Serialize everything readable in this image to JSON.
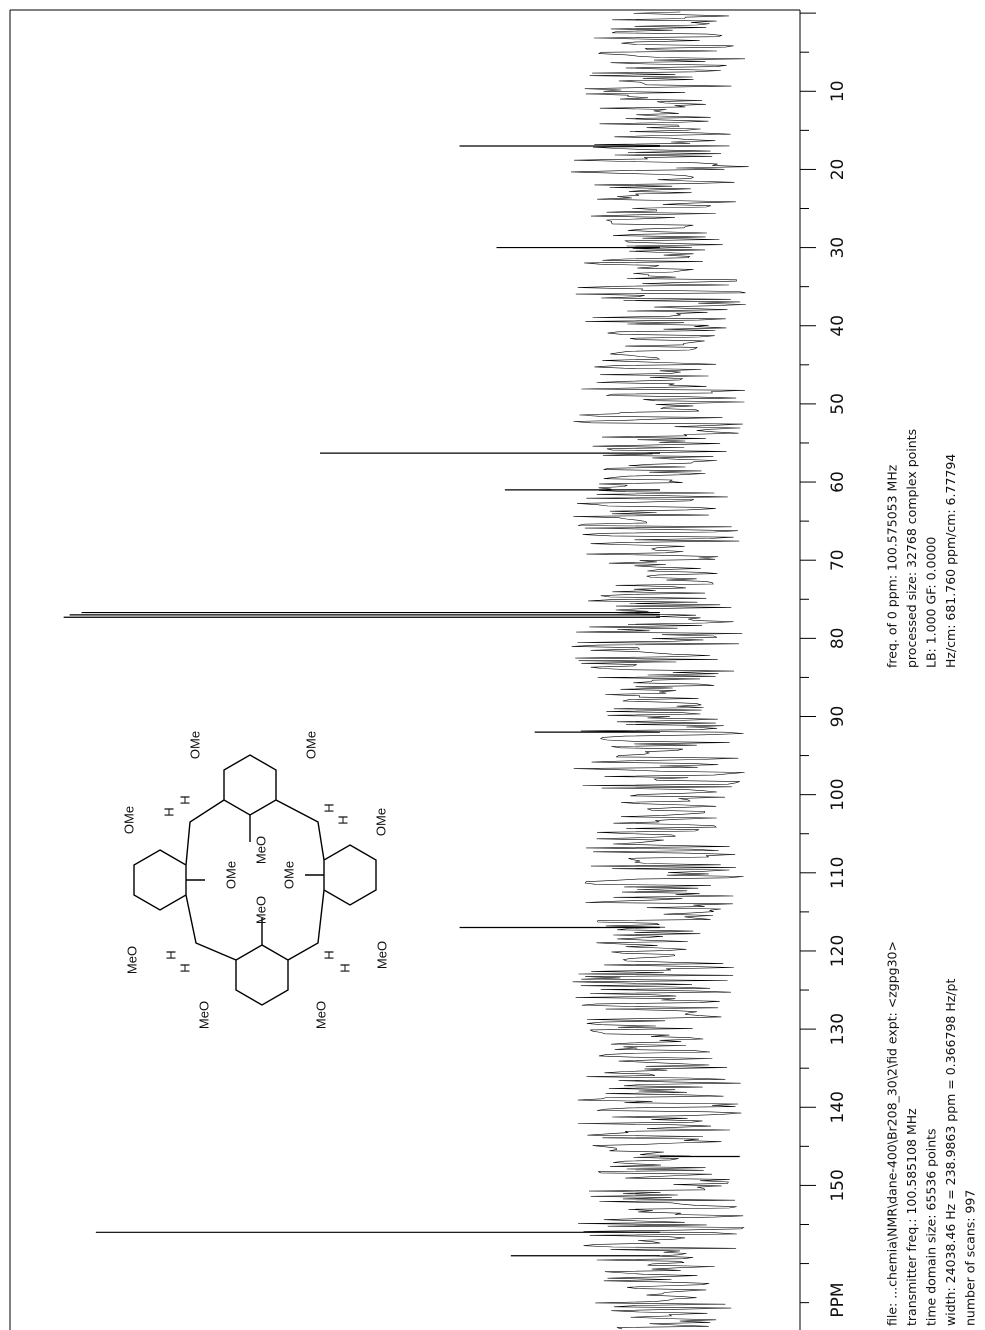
{
  "chart_data": {
    "type": "spectrum",
    "x_label": "PPM",
    "x": [
      159.0,
      156.0,
      146.3,
      117.0,
      92.0,
      77.3,
      77.0,
      76.7,
      61.0,
      56.3,
      30.0,
      17.0
    ],
    "values": [
      25,
      94.6,
      -13.4,
      33.6,
      21,
      100,
      99,
      97,
      26,
      57,
      27.4,
      33.6
    ],
    "xlim": [
      -0.4,
      168.5
    ],
    "ylim": [
      -23.5,
      109
    ],
    "xticks": [
      10,
      20,
      30,
      40,
      50,
      60,
      70,
      80,
      90,
      100,
      110,
      120,
      130,
      140,
      150
    ],
    "minor_xticks": [
      0,
      5,
      15,
      25,
      35,
      45,
      55,
      65,
      75,
      85,
      95,
      105,
      115,
      125,
      135,
      145,
      155,
      160,
      165
    ],
    "color": "#000000",
    "parameters_left": [
      "file: ...chemia\\NMR\\dane-400\\Br208_30\\2\\fid   expt: <zgpg30>",
      "transmitter freq.: 100.585108 MHz",
      "time domain size: 65536 points",
      "width: 24038.46 Hz = 238.9863 ppm = 0.366798 Hz/pt",
      "number of scans: 997"
    ],
    "parameters_right": [
      "freq. of 0 ppm: 100.575053 MHz",
      "processed size: 32768 complex points",
      "LB: 1.000   GF: 0.0000",
      "Hz/cm: 681.760   ppm/cm: 6.77794"
    ],
    "structure_labels": [
      "OMe",
      "OMe",
      "OMe",
      "OMe",
      "OMe",
      "OMe",
      "MeO",
      "MeO",
      "MeO",
      "MeO",
      "MeO",
      "MeO",
      "H",
      "H",
      "H",
      "H",
      "H",
      "H",
      "H",
      "H"
    ]
  }
}
